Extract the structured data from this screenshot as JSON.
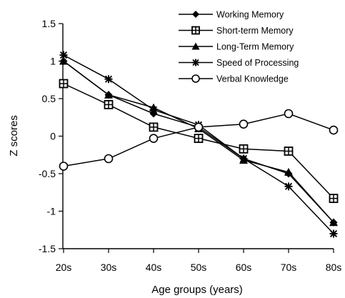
{
  "chart_data": {
    "type": "line",
    "xlabel": "Age groups (years)",
    "ylabel": "Z scores",
    "categories": [
      "20s",
      "30s",
      "40s",
      "50s",
      "60s",
      "70s",
      "80s"
    ],
    "ylim": [
      -1.5,
      1.5
    ],
    "yticks": [
      1.5,
      1,
      0.5,
      0,
      -0.5,
      -1,
      -1.5
    ],
    "ytick_labels": [
      "1.5",
      "1",
      "0.5",
      "0",
      "-0.5",
      "-1",
      "-1.5"
    ],
    "grid": false,
    "legend_position": "top-right",
    "series": [
      {
        "name": "Working Memory",
        "marker": "diamond",
        "values": [
          1.0,
          0.55,
          0.3,
          0.12,
          -0.3,
          -0.5,
          -1.15
        ]
      },
      {
        "name": "Short-term Memory",
        "marker": "square-cross",
        "values": [
          0.7,
          0.42,
          0.12,
          -0.03,
          -0.17,
          -0.2,
          -0.83
        ]
      },
      {
        "name": "Long-Term Memory",
        "marker": "triangle",
        "values": [
          1.0,
          0.55,
          0.38,
          0.1,
          -0.32,
          -0.48,
          -1.15
        ]
      },
      {
        "name": "Speed of Processing",
        "marker": "star",
        "values": [
          1.08,
          0.76,
          0.35,
          0.15,
          -0.3,
          -0.67,
          -1.3
        ]
      },
      {
        "name": "Verbal Knowledge",
        "marker": "circle",
        "values": [
          -0.4,
          -0.3,
          -0.03,
          0.12,
          0.16,
          0.3,
          0.08
        ]
      }
    ]
  }
}
